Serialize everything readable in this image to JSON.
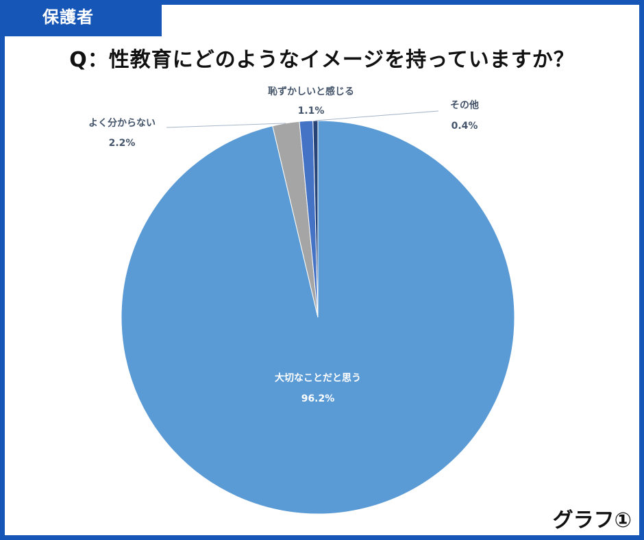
{
  "header": {
    "badge": "保護者",
    "figure_label": "グラフ①"
  },
  "colors": {
    "frame": "#1556b6",
    "slice_main": "#5b9bd5",
    "slice_unknown": "#a5a5a5",
    "slice_shame": "#4472c4",
    "slice_other": "#264478",
    "label_dark": "#44546a"
  },
  "chart_data": {
    "type": "pie",
    "title": "Q：性教育にどのようなイメージを持っていますか？",
    "categories": [
      "大切なことだと思う",
      "よく分からない",
      "恥ずかしいと感じる",
      "その他"
    ],
    "values": [
      96.2,
      2.2,
      1.1,
      0.4
    ],
    "value_labels": [
      "96.2%",
      "2.2%",
      "1.1%",
      "0.4%"
    ],
    "start_angle_deg": 0,
    "direction": "clockwise"
  }
}
